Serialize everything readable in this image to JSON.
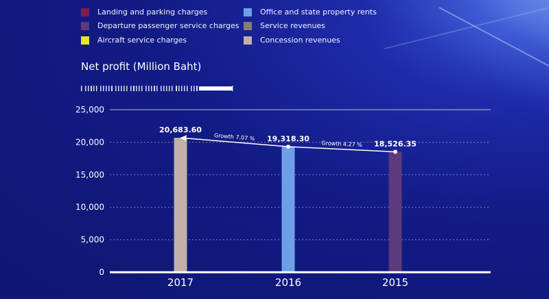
{
  "legend": [
    {
      "label": "Landing and parking charges",
      "color": "#7b1e55"
    },
    {
      "label": "Departure passenger service charges",
      "color": "#5b3a7e"
    },
    {
      "label": "Aircraft service charges",
      "color": "#e6e62a"
    },
    {
      "label": "Office and state property rents",
      "color": "#6f9ee8"
    },
    {
      "label": "Service revenues",
      "color": "#8d7a78"
    },
    {
      "label": "Concession revenues",
      "color": "#c2b0a6"
    }
  ],
  "chart_data": {
    "type": "bar",
    "title": "Net profit (Million Baht)",
    "categories": [
      "2017",
      "2016",
      "2015"
    ],
    "values": [
      20683.6,
      19318.3,
      18526.35
    ],
    "value_labels": [
      "20,683.60",
      "19,318.30",
      "18,526.35"
    ],
    "bar_colors": [
      "#c2b0a6",
      "#6f9ee8",
      "#5b3a7e"
    ],
    "ylim": [
      0,
      25000
    ],
    "yticks": [
      0,
      5000,
      10000,
      15000,
      20000,
      25000
    ],
    "ytick_labels": [
      "0",
      "5,000",
      "10,000",
      "15,000",
      "20,000",
      "25,000"
    ],
    "grid": true,
    "trend_line": true,
    "annotations": [
      {
        "text": "Growth 7.07 %",
        "between": [
          "2016",
          "2017"
        ]
      },
      {
        "text": "Growth 4.27 %",
        "between": [
          "2015",
          "2016"
        ]
      }
    ]
  }
}
